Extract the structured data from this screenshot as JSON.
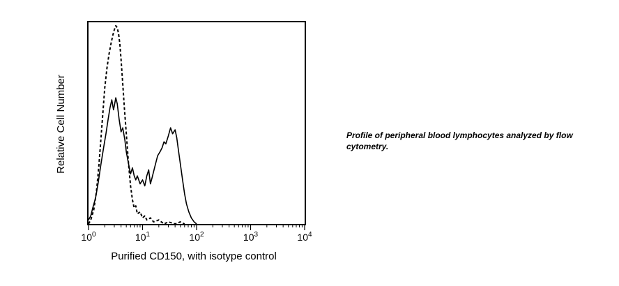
{
  "chart_data": {
    "type": "line",
    "title": "",
    "xlabel": "Purified CD150, with isotype control",
    "ylabel": "Relative Cell Number",
    "x_scale": "log",
    "xlim": [
      1,
      10000
    ],
    "ylim": [
      0,
      1
    ],
    "x_ticks": [
      {
        "value": 1,
        "base": "10",
        "exp": "0"
      },
      {
        "value": 10,
        "base": "10",
        "exp": "1"
      },
      {
        "value": 100,
        "base": "10",
        "exp": "2"
      },
      {
        "value": 1000,
        "base": "10",
        "exp": "3"
      },
      {
        "value": 10000,
        "base": "10",
        "exp": "4"
      }
    ],
    "grid": false,
    "legend": "none",
    "series": [
      {
        "style": "solid",
        "color": "#000000",
        "points": [
          [
            1.0,
            0.02
          ],
          [
            1.1,
            0.04
          ],
          [
            1.2,
            0.08
          ],
          [
            1.35,
            0.13
          ],
          [
            1.5,
            0.2
          ],
          [
            1.7,
            0.3
          ],
          [
            1.9,
            0.38
          ],
          [
            2.1,
            0.45
          ],
          [
            2.3,
            0.52
          ],
          [
            2.5,
            0.58
          ],
          [
            2.7,
            0.62
          ],
          [
            2.9,
            0.57
          ],
          [
            3.0,
            0.59
          ],
          [
            3.2,
            0.63
          ],
          [
            3.4,
            0.6
          ],
          [
            3.7,
            0.52
          ],
          [
            4.0,
            0.46
          ],
          [
            4.3,
            0.48
          ],
          [
            4.7,
            0.42
          ],
          [
            5.0,
            0.36
          ],
          [
            5.5,
            0.3
          ],
          [
            6.0,
            0.25
          ],
          [
            6.5,
            0.28
          ],
          [
            7.0,
            0.24
          ],
          [
            7.5,
            0.22
          ],
          [
            8.0,
            0.24
          ],
          [
            9.0,
            0.2
          ],
          [
            10.0,
            0.22
          ],
          [
            11.0,
            0.19
          ],
          [
            12.0,
            0.24
          ],
          [
            13.0,
            0.27
          ],
          [
            14.0,
            0.2
          ],
          [
            15.0,
            0.23
          ],
          [
            17.0,
            0.29
          ],
          [
            19.0,
            0.34
          ],
          [
            21.0,
            0.36
          ],
          [
            23.0,
            0.38
          ],
          [
            25.0,
            0.41
          ],
          [
            27.0,
            0.4
          ],
          [
            30.0,
            0.44
          ],
          [
            33.0,
            0.48
          ],
          [
            36.0,
            0.45
          ],
          [
            40.0,
            0.47
          ],
          [
            43.0,
            0.43
          ],
          [
            46.0,
            0.37
          ],
          [
            50.0,
            0.3
          ],
          [
            55.0,
            0.22
          ],
          [
            60.0,
            0.15
          ],
          [
            65.0,
            0.1
          ],
          [
            72.0,
            0.06
          ],
          [
            80.0,
            0.03
          ],
          [
            90.0,
            0.01
          ],
          [
            100.0,
            0.0
          ]
        ]
      },
      {
        "style": "dashed",
        "color": "#000000",
        "points": [
          [
            1.0,
            0.0
          ],
          [
            1.1,
            0.02
          ],
          [
            1.25,
            0.07
          ],
          [
            1.4,
            0.16
          ],
          [
            1.55,
            0.29
          ],
          [
            1.7,
            0.43
          ],
          [
            1.85,
            0.56
          ],
          [
            2.0,
            0.68
          ],
          [
            2.2,
            0.78
          ],
          [
            2.4,
            0.85
          ],
          [
            2.6,
            0.9
          ],
          [
            2.8,
            0.94
          ],
          [
            3.0,
            0.97
          ],
          [
            3.2,
            0.99
          ],
          [
            3.4,
            0.98
          ],
          [
            3.6,
            0.95
          ],
          [
            3.8,
            0.9
          ],
          [
            4.0,
            0.82
          ],
          [
            4.3,
            0.7
          ],
          [
            4.6,
            0.58
          ],
          [
            5.0,
            0.45
          ],
          [
            5.5,
            0.3
          ],
          [
            6.0,
            0.19
          ],
          [
            6.5,
            0.12
          ],
          [
            7.0,
            0.08
          ],
          [
            7.5,
            0.09
          ],
          [
            8.0,
            0.05
          ],
          [
            9.0,
            0.06
          ],
          [
            10.0,
            0.03
          ],
          [
            11.0,
            0.04
          ],
          [
            12.0,
            0.02
          ],
          [
            14.0,
            0.03
          ],
          [
            16.0,
            0.01
          ],
          [
            20.0,
            0.02
          ],
          [
            25.0,
            0.0
          ],
          [
            30.0,
            0.01
          ],
          [
            40.0,
            0.0
          ],
          [
            50.0,
            0.01
          ],
          [
            60.0,
            0.0
          ]
        ]
      }
    ]
  },
  "caption": "Profile of peripheral blood lymphocytes analyzed by flow cytometry."
}
